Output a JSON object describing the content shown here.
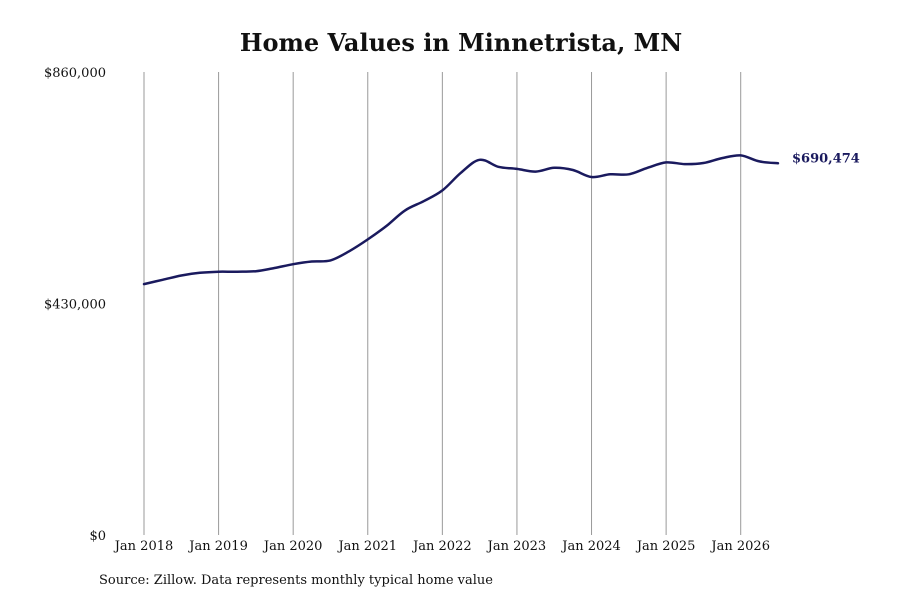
{
  "colors": {
    "line": "#1a1a5e",
    "grid": "#999999"
  },
  "chart_data": {
    "type": "line",
    "title": "Home Values in Minnetrista, MN",
    "source": "Source: Zillow. Data represents monthly typical home value",
    "ylim": [
      0,
      860000
    ],
    "ytick_values": [
      0,
      430000,
      860000
    ],
    "ytick_labels": [
      "$0",
      "$430,000",
      "$860,000"
    ],
    "xlim": [
      "2018-01",
      "2026-07"
    ],
    "xtick_labels": [
      "Jan 2018",
      "Jan 2019",
      "Jan 2020",
      "Jan 2021",
      "Jan 2022",
      "Jan 2023",
      "Jan 2024",
      "Jan 2025",
      "Jan 2026"
    ],
    "grid": "vertical",
    "end_label": "$690,474",
    "series": [
      {
        "x": [
          "2018-01",
          "2018-04",
          "2018-07",
          "2018-10",
          "2019-01",
          "2019-04",
          "2019-07",
          "2019-10",
          "2020-01",
          "2020-04",
          "2020-07",
          "2020-10",
          "2021-01",
          "2021-04",
          "2021-07",
          "2021-10",
          "2022-01",
          "2022-04",
          "2022-07",
          "2022-10",
          "2023-01",
          "2023-04",
          "2023-07",
          "2023-10",
          "2024-01",
          "2024-04",
          "2024-07",
          "2024-10",
          "2025-01",
          "2025-04",
          "2025-07",
          "2025-10",
          "2026-01",
          "2026-04",
          "2026-07"
        ],
        "values": [
          466000,
          474000,
          482000,
          487000,
          489000,
          489000,
          490000,
          496000,
          503000,
          508000,
          510000,
          527000,
          549000,
          574000,
          603000,
          620000,
          640000,
          673000,
          697000,
          684000,
          680000,
          675000,
          682000,
          678000,
          665000,
          670000,
          670000,
          682000,
          692000,
          689000,
          691000,
          700000,
          705000,
          694000,
          690474
        ]
      }
    ]
  }
}
